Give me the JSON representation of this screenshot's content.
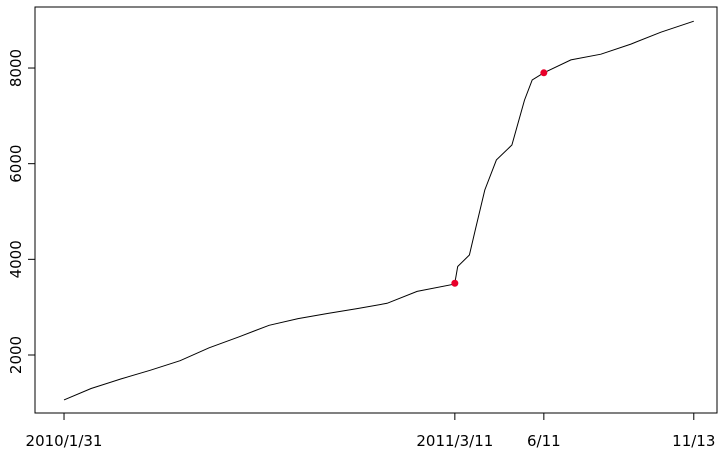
{
  "chart_data": {
    "type": "line",
    "x": [
      "2010-01-31",
      "2010-02-28",
      "2010-03-31",
      "2010-04-30",
      "2010-05-31",
      "2010-06-30",
      "2010-07-31",
      "2010-08-31",
      "2010-09-30",
      "2010-10-31",
      "2010-11-30",
      "2010-12-31",
      "2011-01-31",
      "2011-03-10",
      "2011-03-11",
      "2011-03-14",
      "2011-03-26",
      "2011-04-01",
      "2011-04-11",
      "2011-04-23",
      "2011-05-09",
      "2011-05-22",
      "2011-05-30",
      "2011-06-11",
      "2011-07-09",
      "2011-08-09",
      "2011-09-09",
      "2011-10-10",
      "2011-11-13"
    ],
    "values": [
      1060,
      1300,
      1500,
      1680,
      1880,
      2150,
      2380,
      2620,
      2760,
      2870,
      2970,
      3080,
      3330,
      3480,
      3500,
      3850,
      4090,
      4610,
      5450,
      6080,
      6390,
      7330,
      7750,
      7900,
      8170,
      8290,
      8500,
      8750,
      8980
    ],
    "color": "#000000",
    "points": {
      "x": [
        "2011-03-11",
        "2011-06-11"
      ],
      "values": [
        3500,
        7900
      ],
      "color": "#e8002a"
    },
    "xlim": [
      "2010-01-01",
      "2011-12-07"
    ],
    "xticks": [
      {
        "value": "2010-01-31",
        "label": "2010/1/31"
      },
      {
        "value": "2011-03-11",
        "label": "2011/3/11"
      },
      {
        "value": "2011-06-11",
        "label": "6/11"
      },
      {
        "value": "2011-11-13",
        "label": "11/13"
      }
    ],
    "ylim": [
      787,
      9276
    ],
    "yticks": [
      2000,
      4000,
      6000,
      8000
    ]
  }
}
